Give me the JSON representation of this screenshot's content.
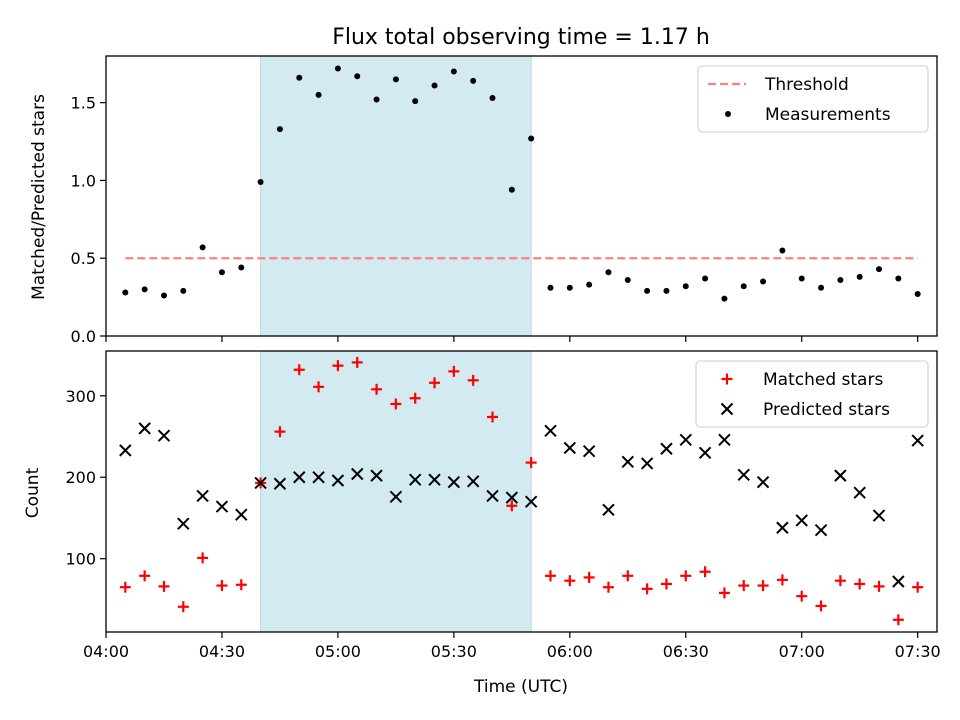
{
  "chart_data": [
    {
      "type": "scatter",
      "panel": "top",
      "title": "Flux total observing time = 1.17 h",
      "ylabel": "Matched/Predicted stars",
      "xlabel": "",
      "x": [
        "04:05",
        "04:10",
        "04:15",
        "04:20",
        "04:25",
        "04:30",
        "04:35",
        "04:40",
        "04:45",
        "04:50",
        "04:55",
        "05:00",
        "05:05",
        "05:10",
        "05:15",
        "05:20",
        "05:25",
        "05:30",
        "05:35",
        "05:40",
        "05:45",
        "05:50",
        "05:55",
        "06:00",
        "06:05",
        "06:10",
        "06:15",
        "06:20",
        "06:25",
        "06:30",
        "06:35",
        "06:40",
        "06:45",
        "06:50",
        "06:55",
        "07:00",
        "07:05",
        "07:10",
        "07:15",
        "07:20",
        "07:25",
        "07:30"
      ],
      "ylim": [
        0,
        1.8
      ],
      "yticks": [
        "0.0",
        "0.5",
        "1.0",
        "1.5"
      ],
      "grid": false,
      "legend_position": "top-right",
      "threshold": {
        "name": "Threshold",
        "value": 0.5,
        "color": "#ff7f7f",
        "style": "dashed",
        "x_start": "04:05",
        "x_end": "07:30"
      },
      "series": [
        {
          "name": "Measurements",
          "color": "#000000",
          "marker": "dot",
          "values": [
            0.28,
            0.3,
            0.26,
            0.29,
            0.57,
            0.41,
            0.44,
            0.99,
            1.33,
            1.66,
            1.55,
            1.72,
            1.67,
            1.52,
            1.65,
            1.51,
            1.61,
            1.7,
            1.64,
            1.53,
            0.94,
            1.27,
            0.31,
            0.31,
            0.33,
            0.41,
            0.36,
            0.29,
            0.29,
            0.32,
            0.37,
            0.24,
            0.32,
            0.35,
            0.55,
            0.37,
            0.31,
            0.36,
            0.38,
            0.43,
            0.37,
            0.27
          ]
        }
      ],
      "shaded_region": {
        "x_start": "04:40",
        "x_end": "05:50",
        "color": "#d3eaf0"
      }
    },
    {
      "type": "scatter",
      "panel": "bottom",
      "title": "",
      "xlabel": "Time (UTC)",
      "ylabel": "Count",
      "x": [
        "04:05",
        "04:10",
        "04:15",
        "04:20",
        "04:25",
        "04:30",
        "04:35",
        "04:40",
        "04:45",
        "04:50",
        "04:55",
        "05:00",
        "05:05",
        "05:10",
        "05:15",
        "05:20",
        "05:25",
        "05:30",
        "05:35",
        "05:40",
        "05:45",
        "05:50",
        "05:55",
        "06:00",
        "06:05",
        "06:10",
        "06:15",
        "06:20",
        "06:25",
        "06:30",
        "06:35",
        "06:40",
        "06:45",
        "06:50",
        "06:55",
        "07:00",
        "07:05",
        "07:10",
        "07:15",
        "07:20",
        "07:25",
        "07:30"
      ],
      "xlim": [
        "04:00",
        "07:35"
      ],
      "xticks": [
        "04:00",
        "04:30",
        "05:00",
        "05:30",
        "06:00",
        "06:30",
        "07:00",
        "07:30"
      ],
      "ylim": [
        10,
        355
      ],
      "yticks": [
        "100",
        "200",
        "300"
      ],
      "grid": false,
      "legend_position": "top-right",
      "series": [
        {
          "name": "Matched stars",
          "color": "#ff0000",
          "marker": "plus",
          "values": [
            65,
            79,
            66,
            41,
            101,
            67,
            68,
            193,
            256,
            332,
            311,
            337,
            341,
            308,
            290,
            297,
            316,
            330,
            319,
            274,
            165,
            218,
            79,
            73,
            77,
            65,
            79,
            63,
            69,
            79,
            84,
            58,
            67,
            67,
            74,
            54,
            42,
            73,
            69,
            66,
            25,
            65
          ]
        },
        {
          "name": "Predicted stars",
          "color": "#000000",
          "marker": "x",
          "values": [
            233,
            260,
            251,
            143,
            177,
            164,
            154,
            193,
            192,
            200,
            200,
            196,
            204,
            202,
            176,
            197,
            197,
            194,
            195,
            177,
            175,
            170,
            257,
            236,
            232,
            160,
            219,
            217,
            235,
            246,
            230,
            246,
            203,
            194,
            138,
            147,
            135,
            202,
            181,
            153,
            72,
            245
          ]
        }
      ],
      "shaded_region": {
        "x_start": "04:40",
        "x_end": "05:50",
        "color": "#d3eaf0"
      }
    }
  ]
}
